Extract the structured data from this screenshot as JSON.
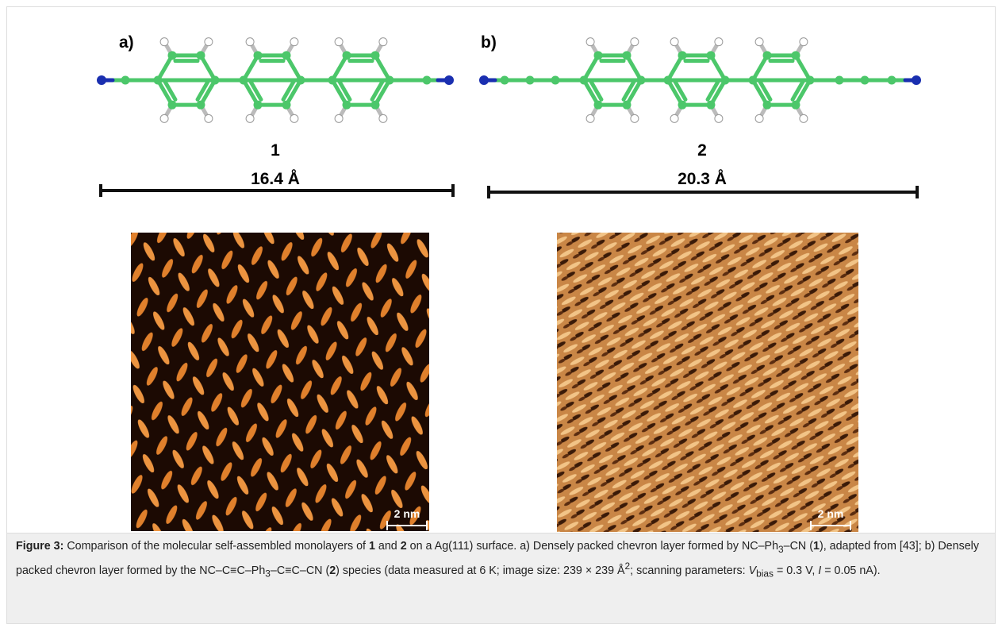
{
  "figure": {
    "panel_a": {
      "label": "a)",
      "compound": "1",
      "length": "16.4 Å",
      "scale": "2 nm"
    },
    "panel_b": {
      "label": "b)",
      "compound": "2",
      "length": "20.3 Å",
      "scale": "2 nm"
    }
  },
  "caption": [
    "Figure 3:",
    " Comparison of the molecular self-assembled monolayers of ",
    "1",
    " and ",
    "2",
    " on a Ag(111) surface. a) Densely packed chevron layer formed by NC–Ph",
    "3",
    "–CN (",
    "1",
    "), adapted from [43]; b) Densely packed chevron layer formed by the NC–C≡C–Ph",
    "3",
    "–C≡C–CN (",
    "2",
    ") species (data measured at 6 K; image size: 239 × 239 Å",
    "2",
    "; scanning parameters: ",
    "V",
    "bias",
    " = 0.3 V, ",
    "I",
    " = 0.05 nA)."
  ]
}
